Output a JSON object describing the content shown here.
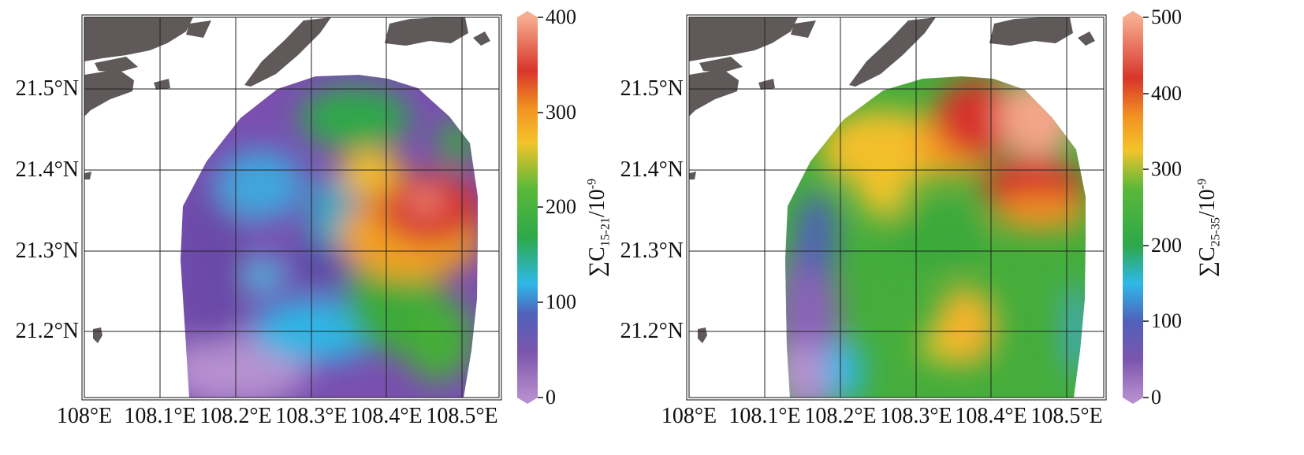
{
  "colors": {
    "land": "#5f5a59",
    "grid": "#222222",
    "scale": [
      "#b084c4",
      "#7a4fa8",
      "#4a5fb5",
      "#2bb6e6",
      "#2fa63f",
      "#63b83a",
      "#f2c22a",
      "#f49a22",
      "#d63329",
      "#f4a58a"
    ]
  },
  "maps": [
    {
      "lat_labels": [
        "21.5°N",
        "21.4°N",
        "21.3°N",
        "21.2°N"
      ],
      "lon_labels": [
        "108°E",
        "108.1°E",
        "108.2°E",
        "108.3°E",
        "108.4°E",
        "108.5°E"
      ],
      "colorbar": {
        "ticks": [
          "400",
          "300",
          "200",
          "100",
          "0"
        ],
        "min": 0,
        "max": 400,
        "title_main": "∑C",
        "title_sub": "15-21",
        "title_rest": "/10",
        "title_sup": "-9"
      }
    },
    {
      "lat_labels": [
        "21.5°N",
        "21.4°N",
        "21.3°N",
        "21.2°N"
      ],
      "lon_labels": [
        "108°E",
        "108.1°E",
        "108.2°E",
        "108.3°E",
        "108.4°E",
        "108.5°E"
      ],
      "colorbar": {
        "ticks": [
          "500",
          "400",
          "300",
          "200",
          "100",
          "0"
        ],
        "min": 0,
        "max": 500,
        "title_main": "∑C",
        "title_sub": "25-35",
        "title_rest": "/10",
        "title_sup": "-9"
      }
    }
  ]
}
